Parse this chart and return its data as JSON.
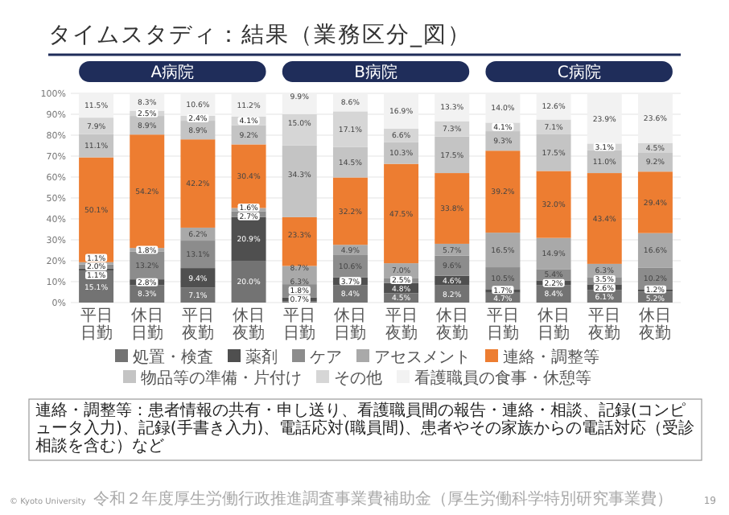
{
  "chart_data": {
    "type": "bar",
    "stacked": true,
    "title": "タイムスタディ：結果（業務区分_図）",
    "categories": [
      "平日日勤",
      "休日日勤",
      "平日夜勤",
      "休日夜勤",
      "平日日勤",
      "休日日勤",
      "平日夜勤",
      "休日夜勤",
      "平日日勤",
      "休日日勤",
      "平日夜勤",
      "休日夜勤"
    ],
    "series": [
      {
        "name": "処置・検査",
        "color": "#737373",
        "values": [
          15.1,
          8.3,
          7.1,
          20.0,
          0.7,
          8.4,
          4.5,
          8.2,
          4.7,
          8.4,
          6.1,
          5.2
        ],
        "value_labels": [
          "15.1%",
          "8.3%",
          "7.1%",
          "20.0%",
          "0.7%",
          "8.4%",
          "4.5%",
          "8.2%",
          "4.7%",
          "8.4%",
          "6.1%",
          "5.2%"
        ]
      },
      {
        "name": "薬剤",
        "color": "#4f4f4f",
        "values": [
          1.1,
          2.8,
          9.4,
          20.9,
          1.8,
          3.7,
          4.8,
          4.6,
          1.7,
          2.2,
          2.6,
          1.2
        ],
        "value_labels": [
          "1.1%",
          "2.8%",
          "9.4%",
          "20.9%",
          "1.8%",
          "3.7%",
          "4.8%",
          "4.6%",
          "1.7%",
          "2.2%",
          "2.6%",
          "1.2%"
        ]
      },
      {
        "name": "ケア",
        "color": "#8c8c8c",
        "values": [
          2.0,
          13.2,
          13.1,
          2.7,
          6.3,
          10.6,
          2.5,
          9.6,
          10.5,
          5.4,
          3.5,
          10.2
        ],
        "value_labels": [
          "2.0%",
          "13.2%",
          "13.1%",
          "2.7%",
          "6.3%",
          "10.6%",
          "2.5%",
          "9.6%",
          "10.5%",
          "5.4%",
          "3.5%",
          "10.2%"
        ]
      },
      {
        "name": "アセスメント",
        "color": "#a9a9a9",
        "values": [
          1.1,
          1.8,
          6.2,
          1.6,
          8.7,
          4.9,
          7.0,
          5.7,
          16.5,
          14.9,
          6.3,
          16.6
        ],
        "value_labels": [
          "1.1%",
          "1.8%",
          "6.2%",
          "1.6%",
          "8.7%",
          "4.9%",
          "7.0%",
          "5.7%",
          "16.5%",
          "14.9%",
          "6.3%",
          "16.6%"
        ]
      },
      {
        "name": "連絡・調整等",
        "color": "#ed7d31",
        "values": [
          50.1,
          54.2,
          42.2,
          30.4,
          23.3,
          32.2,
          47.5,
          33.8,
          39.2,
          32.0,
          43.4,
          29.4
        ],
        "value_labels": [
          "50.1%",
          "54.2%",
          "42.2%",
          "30.4%",
          "23.3%",
          "32.2%",
          "47.5%",
          "33.8%",
          "39.2%",
          "32.0%",
          "43.4%",
          "29.4%"
        ]
      },
      {
        "name": "物品等の準備・片付け",
        "color": "#c4c4c4",
        "values": [
          11.1,
          8.9,
          8.9,
          9.2,
          34.3,
          14.5,
          10.3,
          17.5,
          9.3,
          17.5,
          11.0,
          9.2
        ],
        "value_labels": [
          "11.1%",
          "8.9%",
          "8.9%",
          "9.2%",
          "34.3%",
          "14.5%",
          "10.3%",
          "17.5%",
          "9.3%",
          "17.5%",
          "11.0%",
          "9.2%"
        ]
      },
      {
        "name": "その他",
        "color": "#d6d6d6",
        "values": [
          7.9,
          2.5,
          2.4,
          4.1,
          15.0,
          17.1,
          6.6,
          7.3,
          4.1,
          7.1,
          3.1,
          4.5
        ],
        "value_labels": [
          "7.9%",
          "2.5%",
          "2.4%",
          "4.1%",
          "15.0%",
          "17.1%",
          "6.6%",
          "7.3%",
          "4.1%",
          "7.1%",
          "3.1%",
          "4.5%"
        ]
      },
      {
        "name": "看護職員の食事・休憩等",
        "color": "#f2f2f2",
        "values": [
          11.5,
          8.3,
          10.6,
          11.2,
          9.9,
          8.6,
          16.9,
          13.3,
          14.0,
          12.6,
          23.9,
          23.6
        ],
        "value_labels": [
          "11.5%",
          "8.3%",
          "10.6%",
          "11.2%",
          "9.9%",
          "8.6%",
          "16.9%",
          "13.3%",
          "14.0%",
          "12.6%",
          "23.9%",
          "23.6%"
        ]
      }
    ],
    "ylim": [
      0,
      100
    ],
    "yticks": [
      {
        "value": 0,
        "label": "0%"
      },
      {
        "value": 10,
        "label": "10%"
      },
      {
        "value": 20,
        "label": "20%"
      },
      {
        "value": 30,
        "label": "30%"
      },
      {
        "value": 40,
        "label": "40%"
      },
      {
        "value": 50,
        "label": "50%"
      },
      {
        "value": 60,
        "label": "60%"
      },
      {
        "value": 70,
        "label": "70%"
      },
      {
        "value": 80,
        "label": "80%"
      },
      {
        "value": 90,
        "label": "90%"
      },
      {
        "value": 100,
        "label": "100%"
      }
    ],
    "grid": "y",
    "legend": "bottom",
    "annotations": [
      "A病院",
      "B病院",
      "C病院",
      "連絡・調整等：患者情報の共有・申し送り、看護職員間の報告・連絡・相談、記録(コンピュータ入力)、記録(手書き入力)、電話応対(職員間)、患者やその家族からの電話対応（受診相談を含む）など",
      "© Kyoto University",
      "令和２年度厚生労働行政推進調査事業費補助金（厚生労働科学特別研究事業費）",
      "19"
    ]
  }
}
